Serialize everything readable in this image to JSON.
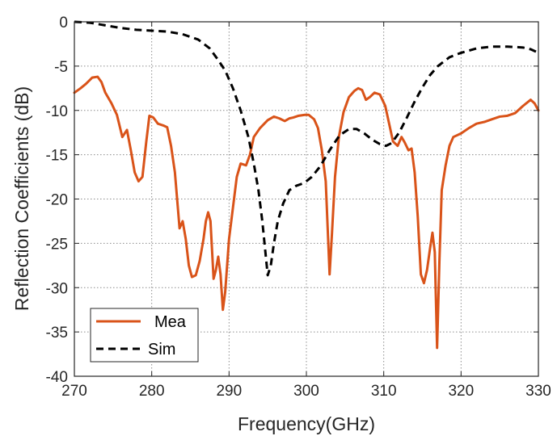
{
  "chart_data": {
    "type": "line",
    "xlabel": "Frequency(GHz)",
    "ylabel": "Reflection Coefficients  (dB)",
    "xlim": [
      270,
      330
    ],
    "ylim": [
      -40,
      0
    ],
    "xticks": [
      270,
      280,
      290,
      300,
      310,
      320,
      330
    ],
    "yticks": [
      0,
      -5,
      -10,
      -15,
      -20,
      -25,
      -30,
      -35,
      -40
    ],
    "grid": true,
    "legend_position": "bottom-left",
    "series": [
      {
        "name": "Mea",
        "color": "#d95319",
        "style": "solid",
        "points": [
          [
            270,
            -8.0
          ],
          [
            270.8,
            -7.5
          ],
          [
            271.5,
            -7.0
          ],
          [
            272.3,
            -6.3
          ],
          [
            273,
            -6.2
          ],
          [
            273.5,
            -6.8
          ],
          [
            274,
            -8.0
          ],
          [
            274.8,
            -9.2
          ],
          [
            275.5,
            -10.5
          ],
          [
            276.2,
            -13.0
          ],
          [
            276.8,
            -12.2
          ],
          [
            277.3,
            -14.5
          ],
          [
            277.8,
            -17.0
          ],
          [
            278.3,
            -18.0
          ],
          [
            278.8,
            -17.5
          ],
          [
            279.3,
            -13.5
          ],
          [
            279.7,
            -10.6
          ],
          [
            280.2,
            -10.8
          ],
          [
            280.8,
            -11.5
          ],
          [
            281.5,
            -11.7
          ],
          [
            282,
            -11.9
          ],
          [
            282.5,
            -14.0
          ],
          [
            283,
            -17.0
          ],
          [
            283.6,
            -23.3
          ],
          [
            284,
            -22.5
          ],
          [
            284.4,
            -24.5
          ],
          [
            284.8,
            -27.5
          ],
          [
            285.2,
            -28.8
          ],
          [
            285.7,
            -28.6
          ],
          [
            286.2,
            -27.0
          ],
          [
            286.7,
            -24.5
          ],
          [
            287,
            -22.5
          ],
          [
            287.3,
            -21.5
          ],
          [
            287.6,
            -22.5
          ],
          [
            288,
            -29.0
          ],
          [
            288.3,
            -28.0
          ],
          [
            288.6,
            -26.5
          ],
          [
            288.9,
            -28.5
          ],
          [
            289.2,
            -32.5
          ],
          [
            289.5,
            -30.5
          ],
          [
            290,
            -24.5
          ],
          [
            290.5,
            -21.0
          ],
          [
            291,
            -17.5
          ],
          [
            291.5,
            -16.0
          ],
          [
            292.2,
            -16.2
          ],
          [
            292.7,
            -15.0
          ],
          [
            293.2,
            -13.0
          ],
          [
            294,
            -12.0
          ],
          [
            295,
            -11.1
          ],
          [
            295.8,
            -10.7
          ],
          [
            296.5,
            -10.9
          ],
          [
            297.2,
            -11.2
          ],
          [
            297.8,
            -10.9
          ],
          [
            298.3,
            -10.8
          ],
          [
            299,
            -10.6
          ],
          [
            299.8,
            -10.5
          ],
          [
            300.3,
            -10.5
          ],
          [
            301,
            -11.0
          ],
          [
            301.5,
            -12.0
          ],
          [
            302,
            -14.5
          ],
          [
            302.5,
            -18.0
          ],
          [
            303,
            -28.5
          ],
          [
            303.3,
            -24.0
          ],
          [
            303.7,
            -17.5
          ],
          [
            304.2,
            -13.0
          ],
          [
            304.8,
            -10.2
          ],
          [
            305.5,
            -8.5
          ],
          [
            306.2,
            -7.8
          ],
          [
            306.7,
            -7.5
          ],
          [
            307.2,
            -7.7
          ],
          [
            307.7,
            -8.8
          ],
          [
            308.2,
            -8.5
          ],
          [
            308.8,
            -8.0
          ],
          [
            309.5,
            -8.2
          ],
          [
            310.2,
            -9.5
          ],
          [
            310.7,
            -11.5
          ],
          [
            311.2,
            -13.5
          ],
          [
            311.8,
            -14.0
          ],
          [
            312.3,
            -13.0
          ],
          [
            312.7,
            -13.6
          ],
          [
            313.2,
            -14.5
          ],
          [
            313.6,
            -14.3
          ],
          [
            314,
            -17.0
          ],
          [
            314.4,
            -22.0
          ],
          [
            314.8,
            -28.5
          ],
          [
            315.2,
            -29.5
          ],
          [
            315.6,
            -28.0
          ],
          [
            316,
            -25.5
          ],
          [
            316.3,
            -23.8
          ],
          [
            316.6,
            -26.0
          ],
          [
            316.9,
            -36.8
          ],
          [
            317.2,
            -27.0
          ],
          [
            317.5,
            -19.0
          ],
          [
            318,
            -16.2
          ],
          [
            318.5,
            -14.0
          ],
          [
            319,
            -13.0
          ],
          [
            320,
            -12.6
          ],
          [
            321,
            -12.0
          ],
          [
            322,
            -11.5
          ],
          [
            323,
            -11.3
          ],
          [
            324,
            -11.0
          ],
          [
            325,
            -10.7
          ],
          [
            326,
            -10.6
          ],
          [
            327,
            -10.3
          ],
          [
            328,
            -9.5
          ],
          [
            329,
            -8.8
          ],
          [
            329.5,
            -9.2
          ],
          [
            330,
            -10.0
          ]
        ]
      },
      {
        "name": "Sim",
        "color": "#000000",
        "style": "dashed",
        "points": [
          [
            270,
            0.0
          ],
          [
            272,
            -0.1
          ],
          [
            274,
            -0.4
          ],
          [
            276,
            -0.7
          ],
          [
            278,
            -0.9
          ],
          [
            280,
            -1.0
          ],
          [
            282,
            -1.1
          ],
          [
            284,
            -1.4
          ],
          [
            286,
            -2.0
          ],
          [
            287.5,
            -3.0
          ],
          [
            288.5,
            -4.2
          ],
          [
            289.5,
            -5.5
          ],
          [
            290.5,
            -7.5
          ],
          [
            291.5,
            -10.0
          ],
          [
            292.5,
            -13.0
          ],
          [
            293.2,
            -16.0
          ],
          [
            293.8,
            -19.0
          ],
          [
            294.3,
            -22.5
          ],
          [
            294.7,
            -26.0
          ],
          [
            295,
            -28.6
          ],
          [
            295.4,
            -27.5
          ],
          [
            295.8,
            -25.0
          ],
          [
            296.3,
            -22.5
          ],
          [
            297,
            -20.5
          ],
          [
            297.8,
            -19.0
          ],
          [
            298.7,
            -18.5
          ],
          [
            299.7,
            -18.2
          ],
          [
            300.7,
            -17.5
          ],
          [
            301.8,
            -16.3
          ],
          [
            303,
            -14.5
          ],
          [
            304.3,
            -12.8
          ],
          [
            305.5,
            -12.1
          ],
          [
            306.5,
            -12.1
          ],
          [
            307.5,
            -12.6
          ],
          [
            308.5,
            -13.3
          ],
          [
            309.5,
            -13.8
          ],
          [
            310.3,
            -14.0
          ],
          [
            311,
            -13.7
          ],
          [
            312,
            -12.5
          ],
          [
            313,
            -10.8
          ],
          [
            314,
            -9.0
          ],
          [
            315,
            -7.4
          ],
          [
            316,
            -6.0
          ],
          [
            317,
            -5.0
          ],
          [
            318.5,
            -4.0
          ],
          [
            320,
            -3.5
          ],
          [
            322,
            -3.0
          ],
          [
            324,
            -2.8
          ],
          [
            326,
            -2.8
          ],
          [
            328,
            -2.9
          ],
          [
            329,
            -3.1
          ],
          [
            330,
            -3.5
          ]
        ]
      }
    ]
  }
}
